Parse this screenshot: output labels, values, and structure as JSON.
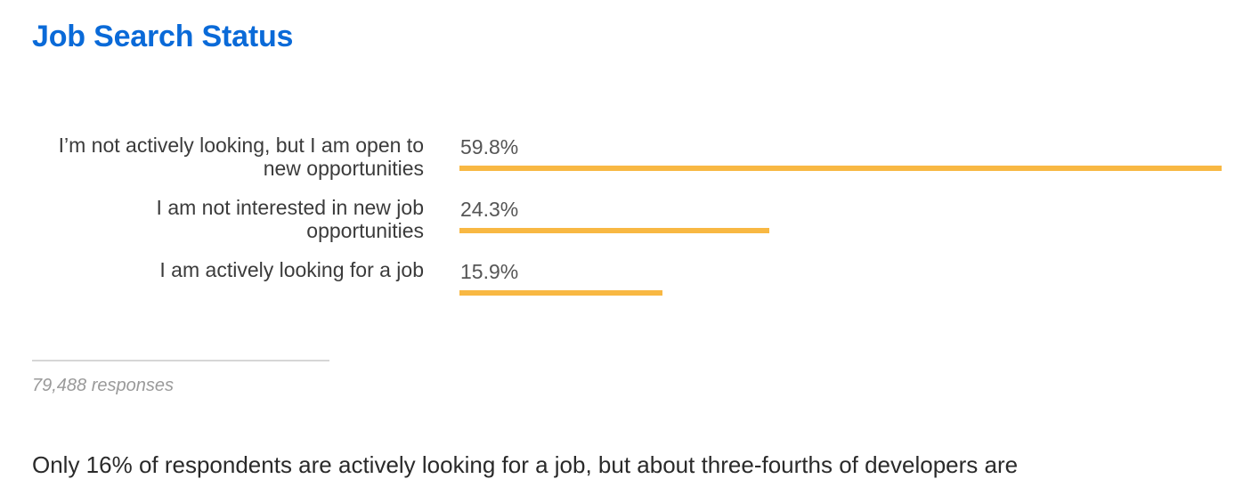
{
  "page": {
    "title": "Job Search Status",
    "responses": "79,488 responses",
    "summary": "Only 16% of respondents are actively looking for a job, but about three-fourths of developers are"
  },
  "chart_data": {
    "type": "bar",
    "orientation": "horizontal",
    "categories": [
      "I’m not actively looking, but I am open to new opportunities",
      "I am not interested in new job opportunities",
      "I am actively looking for a job"
    ],
    "values": [
      59.8,
      24.3,
      15.9
    ],
    "value_labels": [
      "59.8%",
      "24.3%",
      "15.9%"
    ],
    "unit": "%",
    "bar_color": "#f8b843"
  }
}
